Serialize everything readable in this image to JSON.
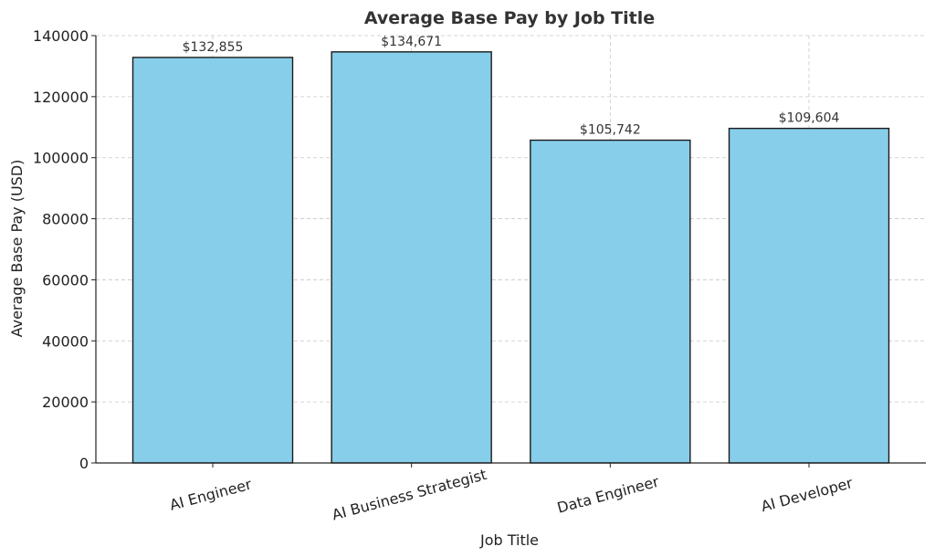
{
  "chart_data": {
    "type": "bar",
    "title": "Average Base Pay by Job Title",
    "xlabel": "Job Title",
    "ylabel": "Average Base Pay (USD)",
    "categories": [
      "AI Engineer",
      "AI Business Strategist",
      "Data Engineer",
      "AI Developer"
    ],
    "values": [
      132855,
      134671,
      105742,
      109604
    ],
    "data_labels": [
      "$132,855",
      "$134,671",
      "$105,742",
      "$109,604"
    ],
    "ylim": [
      0,
      140000
    ],
    "yticks": [
      0,
      20000,
      40000,
      60000,
      80000,
      100000,
      120000,
      140000
    ],
    "ytick_labels": [
      "0",
      "20000",
      "40000",
      "60000",
      "80000",
      "100000",
      "120000",
      "140000"
    ],
    "grid": true,
    "bar_color": "#87ceeb",
    "edge_color": "#1a1a1a"
  }
}
